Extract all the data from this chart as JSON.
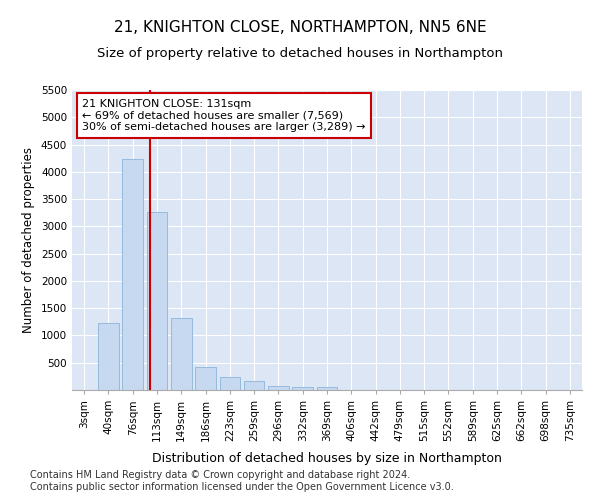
{
  "title": "21, KNIGHTON CLOSE, NORTHAMPTON, NN5 6NE",
  "subtitle": "Size of property relative to detached houses in Northampton",
  "xlabel": "Distribution of detached houses by size in Northampton",
  "ylabel": "Number of detached properties",
  "categories": [
    "3sqm",
    "40sqm",
    "76sqm",
    "113sqm",
    "149sqm",
    "186sqm",
    "223sqm",
    "259sqm",
    "296sqm",
    "332sqm",
    "369sqm",
    "406sqm",
    "442sqm",
    "479sqm",
    "515sqm",
    "552sqm",
    "589sqm",
    "625sqm",
    "662sqm",
    "698sqm",
    "735sqm"
  ],
  "bar_values": [
    0,
    1220,
    4230,
    3270,
    1320,
    430,
    240,
    170,
    80,
    60,
    60,
    0,
    0,
    0,
    0,
    0,
    0,
    0,
    0,
    0,
    0
  ],
  "bar_color": "#c6d9f0",
  "bar_edge_color": "#8cb4d8",
  "red_line_index": 2.72,
  "annotation_text": "21 KNIGHTON CLOSE: 131sqm\n← 69% of detached houses are smaller (7,569)\n30% of semi-detached houses are larger (3,289) →",
  "annotation_box_facecolor": "#ffffff",
  "annotation_box_edgecolor": "#cc0000",
  "ylim": [
    0,
    5500
  ],
  "yticks": [
    500,
    1000,
    1500,
    2000,
    2500,
    3000,
    3500,
    4000,
    4500,
    5000,
    5500
  ],
  "background_color": "#dce6f5",
  "plot_bg_color": "#dce6f5",
  "footer_line1": "Contains HM Land Registry data © Crown copyright and database right 2024.",
  "footer_line2": "Contains public sector information licensed under the Open Government Licence v3.0.",
  "title_fontsize": 11,
  "subtitle_fontsize": 9.5,
  "xlabel_fontsize": 9,
  "ylabel_fontsize": 8.5,
  "tick_fontsize": 7.5,
  "footer_fontsize": 7,
  "red_line_color": "#cc0000",
  "grid_color": "#ffffff",
  "spine_color": "#aaaaaa"
}
